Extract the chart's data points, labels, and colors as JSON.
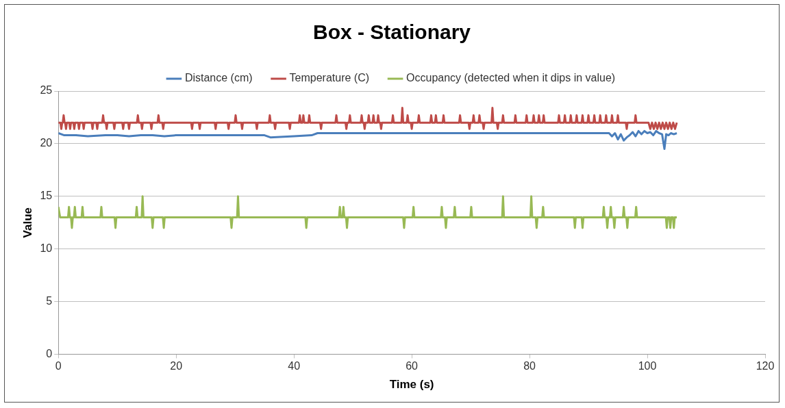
{
  "chart_data": {
    "type": "line",
    "title": "Box - Stationary",
    "xlabel": "Time (s)",
    "ylabel": "Value",
    "xlim": [
      0,
      120
    ],
    "xticks": [
      0,
      20,
      40,
      60,
      80,
      100,
      120
    ],
    "ylim": [
      0,
      25
    ],
    "yticks": [
      0,
      5,
      10,
      15,
      20,
      25
    ],
    "grid": "y",
    "legend": "top",
    "marker": "none",
    "line_style": "solid",
    "series": [
      {
        "name": "Distance (cm)",
        "color": "#4a7ebb",
        "x": [
          0,
          1,
          3,
          5,
          8,
          10,
          12,
          14,
          16,
          18,
          20,
          25,
          30,
          35,
          36,
          40,
          43,
          44,
          50,
          60,
          70,
          80,
          90,
          93.5,
          94,
          94.5,
          95,
          95.5,
          96,
          96.5,
          97,
          97.5,
          98,
          98.5,
          99,
          99.5,
          100,
          100.5,
          101,
          101.5,
          102,
          102.5,
          102.9,
          103.2,
          103.6,
          104,
          104.5,
          105
        ],
        "values": [
          21,
          20.8,
          20.8,
          20.7,
          20.8,
          20.8,
          20.7,
          20.8,
          20.8,
          20.7,
          20.8,
          20.8,
          20.8,
          20.8,
          20.6,
          20.7,
          20.8,
          21,
          21,
          21,
          21,
          21,
          21,
          21,
          20.7,
          21,
          20.4,
          20.9,
          20.3,
          20.6,
          20.8,
          21.1,
          20.7,
          21.2,
          20.9,
          21.2,
          21,
          21.1,
          20.8,
          21.2,
          21,
          20.9,
          19.5,
          20.9,
          20.8,
          21,
          20.9,
          21
        ]
      },
      {
        "name": "Temperature (C)",
        "color": "#be4b48",
        "x": [
          0,
          0.35,
          0.5,
          0.65,
          0.75,
          0.9,
          1.05,
          1.15,
          1.3,
          1.45,
          1.85,
          2,
          2.15,
          2.55,
          2.7,
          2.85,
          3.35,
          3.5,
          3.65,
          4.15,
          4.3,
          4.45,
          5.65,
          5.8,
          5.95,
          6.45,
          6.6,
          6.75,
          7.45,
          7.6,
          7.75,
          8.05,
          8.2,
          8.35,
          9.35,
          9.5,
          9.65,
          10.85,
          11,
          11.15,
          11.85,
          12,
          12.15,
          13.35,
          13.5,
          13.65,
          14.05,
          14.2,
          14.35,
          15.65,
          15.8,
          15.95,
          16.85,
          17,
          17.15,
          17.65,
          17.8,
          17.95,
          22.55,
          22.7,
          22.85,
          23.85,
          24,
          24.15,
          26.55,
          26.7,
          26.85,
          28.75,
          28.9,
          29.05,
          29.95,
          30.1,
          30.25,
          31.05,
          31.2,
          31.35,
          33.55,
          33.7,
          33.85,
          35.75,
          35.9,
          36.05,
          36.65,
          36.8,
          36.95,
          39.15,
          39.3,
          39.45,
          40.85,
          41,
          41.15,
          41.45,
          41.6,
          41.75,
          42.45,
          42.6,
          42.75,
          44.45,
          44.6,
          44.75,
          47.05,
          47.2,
          47.35,
          48.75,
          48.9,
          49.05,
          49.35,
          49.5,
          49.65,
          51.35,
          51.5,
          51.65,
          51.85,
          52,
          52.15,
          52.55,
          52.7,
          52.85,
          53.35,
          53.5,
          53.65,
          54.15,
          54.3,
          54.45,
          54.65,
          54.8,
          54.95,
          56.65,
          56.8,
          56.95,
          58.25,
          58.4,
          58.55,
          59.15,
          59.3,
          59.45,
          59.85,
          60,
          60.15,
          61.05,
          61.2,
          61.35,
          63.15,
          63.3,
          63.45,
          63.95,
          64.1,
          64.25,
          65.25,
          65.4,
          65.55,
          68.05,
          68.2,
          68.35,
          69.65,
          69.8,
          69.95,
          70.35,
          70.5,
          70.65,
          71.35,
          71.5,
          71.65,
          72.05,
          72.2,
          72.35,
          73.55,
          73.7,
          73.85,
          74.45,
          74.6,
          74.75,
          75.35,
          75.5,
          75.65,
          77.45,
          77.6,
          77.75,
          79.35,
          79.5,
          79.65,
          80.55,
          80.7,
          80.85,
          81.45,
          81.6,
          81.75,
          82.25,
          82.4,
          82.55,
          84.85,
          85,
          85.15,
          85.85,
          86,
          86.15,
          86.85,
          87,
          87.15,
          87.85,
          88,
          88.15,
          88.85,
          89,
          89.15,
          89.85,
          90,
          90.15,
          90.85,
          91,
          91.15,
          91.85,
          92,
          92.15,
          92.85,
          93,
          93.15,
          93.85,
          94,
          94.15,
          94.85,
          95,
          95.15,
          96.35,
          96.5,
          96.65,
          97.85,
          98,
          98.15,
          100.2,
          100.5,
          100.8,
          101.1,
          101.4,
          101.7,
          102,
          102.3,
          102.6,
          102.9,
          103.2,
          103.5,
          103.8,
          104.1,
          104.4,
          104.7,
          105
        ],
        "values": [
          22,
          22,
          21.4,
          22,
          22,
          22.7,
          22,
          22,
          21.4,
          22,
          22,
          21.4,
          22,
          22,
          21.4,
          22,
          22,
          21.4,
          22,
          22,
          21.4,
          22,
          22,
          21.4,
          22,
          22,
          21.4,
          22,
          22,
          22.7,
          22,
          22,
          21.4,
          22,
          22,
          21.4,
          22,
          22,
          21.4,
          22,
          22,
          21.4,
          22,
          22,
          22.7,
          22,
          22,
          21.4,
          22,
          22,
          21.4,
          22,
          22,
          22.7,
          22,
          22,
          21.4,
          22,
          22,
          21.4,
          22,
          22,
          21.4,
          22,
          22,
          21.4,
          22,
          22,
          21.4,
          22,
          22,
          22.7,
          22,
          22,
          21.4,
          22,
          22,
          21.4,
          22,
          22,
          22.7,
          22,
          22,
          21.4,
          22,
          22,
          21.4,
          22,
          22,
          22.7,
          22,
          22,
          22.7,
          22,
          22,
          22.7,
          22,
          22,
          21.4,
          22,
          22,
          22.7,
          22,
          22,
          21.4,
          22,
          22,
          22.7,
          22,
          22,
          22.7,
          22,
          22,
          21.4,
          22,
          22,
          22.7,
          22,
          22,
          22.7,
          22,
          22,
          22.7,
          22,
          22,
          21.4,
          22,
          22,
          22.7,
          22,
          22,
          23.4,
          22,
          22,
          22.7,
          22,
          22,
          21.4,
          22,
          22,
          22.7,
          22,
          22,
          22.7,
          22,
          22,
          22.7,
          22,
          22,
          22.7,
          22,
          22,
          22.7,
          22,
          22,
          21.4,
          22,
          22,
          22.7,
          22,
          22,
          22.7,
          22,
          22,
          21.4,
          22,
          22,
          23.4,
          22,
          22,
          21.4,
          22,
          22,
          22.7,
          22,
          22,
          22.7,
          22,
          22,
          22.7,
          22,
          22,
          22.7,
          22,
          22,
          22.7,
          22,
          22,
          22.7,
          22,
          22,
          22.7,
          22,
          22,
          22.7,
          22,
          22,
          22.7,
          22,
          22,
          22.7,
          22,
          22,
          22.7,
          22,
          22,
          22.7,
          22,
          22,
          22.7,
          22,
          22,
          22.7,
          22,
          22,
          22.7,
          22,
          22,
          22.7,
          22,
          22,
          22.7,
          22,
          22,
          21.4,
          22,
          22,
          22.7,
          22,
          22,
          21.4,
          22,
          21.4,
          22,
          21.4,
          22,
          21.4,
          22,
          21.4,
          22,
          21.4,
          22,
          21.4,
          22,
          21.4,
          22
        ]
      },
      {
        "name": "Occupancy (detected when it dips in value)",
        "color": "#98b954",
        "x": [
          0,
          0.3,
          1.65,
          1.8,
          1.95,
          2.15,
          2.3,
          2.45,
          2.65,
          2.8,
          2.95,
          3.95,
          4.1,
          4.25,
          7.15,
          7.3,
          7.45,
          9.55,
          9.7,
          9.85,
          13.15,
          13.3,
          13.45,
          14.15,
          14.3,
          14.45,
          15.85,
          16,
          16.15,
          17.75,
          17.9,
          18.05,
          29.25,
          29.4,
          29.55,
          30.35,
          30.5,
          30.65,
          41.95,
          42.1,
          42.25,
          47.65,
          47.8,
          47.95,
          48.25,
          48.4,
          48.55,
          48.85,
          49,
          49.15,
          58.55,
          58.7,
          58.85,
          60.15,
          60.3,
          60.45,
          64.95,
          65.1,
          65.25,
          65.65,
          65.8,
          65.95,
          67.15,
          67.3,
          67.45,
          69.95,
          70.1,
          70.25,
          75.35,
          75.5,
          75.65,
          80.15,
          80.3,
          80.45,
          81.05,
          81.2,
          81.35,
          82.15,
          82.3,
          82.45,
          87.55,
          87.7,
          87.85,
          88.85,
          89,
          89.15,
          92.45,
          92.6,
          92.75,
          93.05,
          93.2,
          93.35,
          93.65,
          93.8,
          93.95,
          94.25,
          94.4,
          94.55,
          95.85,
          96,
          96.15,
          96.45,
          96.6,
          96.75,
          97.95,
          98.1,
          98.25,
          103.15,
          103.3,
          103.45,
          103.75,
          103.9,
          104.05,
          104.35,
          104.5,
          104.65,
          105
        ],
        "values": [
          14,
          13,
          13,
          14,
          13,
          13,
          12,
          13,
          13,
          14,
          13,
          13,
          14,
          13,
          13,
          14,
          13,
          13,
          12,
          13,
          13,
          14,
          13,
          13,
          15,
          13,
          13,
          12,
          13,
          13,
          12,
          13,
          13,
          12,
          13,
          13,
          15,
          13,
          13,
          12,
          13,
          13,
          14,
          13,
          13,
          14,
          13,
          13,
          12,
          13,
          13,
          12,
          13,
          13,
          14,
          13,
          13,
          14,
          13,
          13,
          12,
          13,
          13,
          14,
          13,
          13,
          14,
          13,
          13,
          15,
          13,
          13,
          15,
          13,
          13,
          12,
          13,
          13,
          14,
          13,
          13,
          12,
          13,
          13,
          12,
          13,
          13,
          14,
          13,
          13,
          12,
          13,
          13,
          14,
          13,
          13,
          12,
          13,
          13,
          14,
          13,
          13,
          12,
          13,
          13,
          14,
          13,
          13,
          12,
          13,
          13,
          12,
          13,
          13,
          12,
          13,
          13
        ]
      }
    ]
  }
}
